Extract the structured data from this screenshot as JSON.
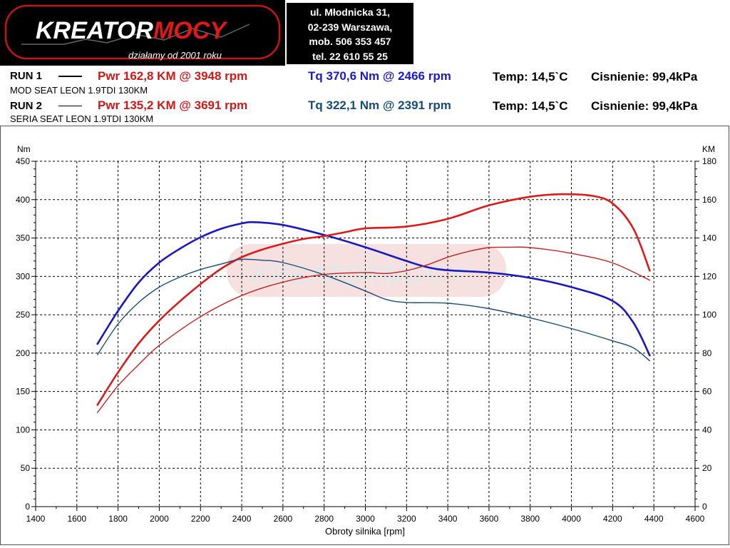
{
  "logo": {
    "brand": "KreatorMocy",
    "tagline": "działamy od 2001 roku"
  },
  "contact": {
    "line1": "ul. Młodnicka 31,",
    "line2": "02-239  Warszawa,",
    "line3": "mob.  506 353 457",
    "line4": "tel.  22 610 55 25"
  },
  "runs": [
    {
      "label": "RUN 1",
      "pwr": "Pwr  162,8 KM @ 3948 rpm",
      "tq": "Tq 370,6 Nm @ 2466 rpm",
      "temp": "Temp: 14,5`C",
      "pressure": "Cisnienie: 99,4kPa",
      "name": "MOD SEAT LEON 1.9TDI 130KM"
    },
    {
      "label": "RUN 2",
      "pwr": "Pwr  135,2 KM @ 3691 rpm",
      "tq": "Tq 322,1 Nm @ 2391 rpm",
      "temp": "Temp: 14,5`C",
      "pressure": "Cisnienie: 99,4kPa",
      "name": "SERIA SEAT LEON 1.9TDI 130KM"
    }
  ],
  "colors": {
    "power_run1": "#dd1a1a",
    "power_run2": "#c22424",
    "torque_run1": "#1818c0",
    "torque_run2": "#174d73"
  },
  "chart_data": {
    "type": "line",
    "xlabel": "Obroty silnika [rpm]",
    "ylabel_left": "Nm",
    "ylabel_right": "KM",
    "xlim": [
      1400,
      4600
    ],
    "ylim_left": [
      0,
      450
    ],
    "ylim_right": [
      0,
      180
    ],
    "xticks": [
      "1400",
      "1600",
      "1800",
      "2000",
      "2200",
      "2400",
      "2600",
      "2800",
      "3000",
      "3200",
      "3400",
      "3600",
      "3800",
      "4000",
      "4200",
      "4400",
      "4600"
    ],
    "yticks_left": [
      "0",
      "50",
      "100",
      "150",
      "200",
      "250",
      "300",
      "350",
      "400",
      "450"
    ],
    "yticks_right": [
      "0",
      "20",
      "40",
      "60",
      "80",
      "100",
      "120",
      "140",
      "160",
      "180"
    ],
    "grid": true,
    "series": [
      {
        "key": "tq1",
        "axis": "left",
        "x": [
          1700,
          1800,
          1900,
          2000,
          2100,
          2200,
          2300,
          2400,
          2466,
          2600,
          2800,
          3000,
          3200,
          3300,
          3400,
          3600,
          3800,
          4000,
          4200,
          4300,
          4380
        ],
        "y": [
          212,
          255,
          292,
          318,
          336,
          351,
          362,
          369,
          370.6,
          367,
          354,
          338,
          320,
          312,
          308,
          305,
          298,
          286,
          268,
          240,
          197
        ]
      },
      {
        "key": "pwr1",
        "axis": "right",
        "x": [
          1700,
          1800,
          1900,
          2000,
          2100,
          2200,
          2300,
          2400,
          2500,
          2600,
          2700,
          2800,
          2900,
          3000,
          3200,
          3400,
          3600,
          3800,
          3948,
          4100,
          4200,
          4300,
          4380
        ],
        "y": [
          53,
          70,
          85,
          97,
          107,
          116,
          124,
          130,
          134,
          137,
          139.5,
          141,
          143,
          145,
          146,
          150,
          157,
          161.5,
          162.8,
          162,
          158,
          145,
          123
        ]
      },
      {
        "key": "tq2",
        "axis": "left",
        "x": [
          1700,
          1800,
          1900,
          2000,
          2100,
          2200,
          2300,
          2391,
          2500,
          2600,
          2800,
          3000,
          3100,
          3200,
          3400,
          3600,
          3800,
          4000,
          4200,
          4300,
          4380
        ],
        "y": [
          198,
          238,
          266,
          286,
          299,
          309,
          316,
          322.1,
          321,
          318,
          302,
          281,
          270,
          266,
          265,
          258,
          246,
          232,
          216,
          207,
          190
        ]
      },
      {
        "key": "pwr2",
        "axis": "right",
        "x": [
          1700,
          1800,
          1900,
          2000,
          2200,
          2400,
          2600,
          2800,
          3000,
          3100,
          3200,
          3300,
          3400,
          3500,
          3600,
          3691,
          3800,
          4000,
          4200,
          4380
        ],
        "y": [
          49,
          63,
          74,
          84,
          99,
          110,
          117,
          121,
          122,
          121.5,
          123,
          126,
          130,
          133,
          135,
          135.2,
          135,
          132,
          127,
          118
        ]
      }
    ]
  }
}
